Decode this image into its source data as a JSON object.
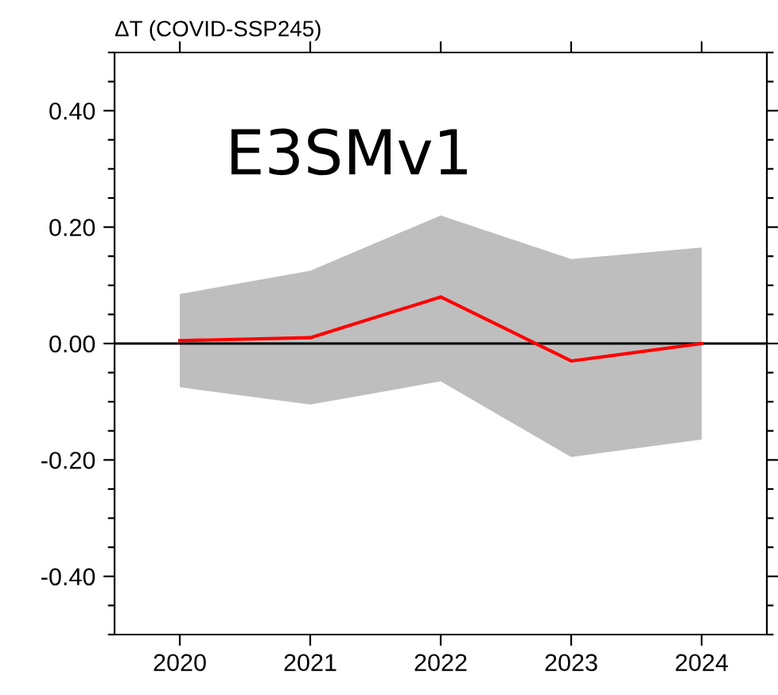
{
  "chart_data": {
    "type": "line",
    "ylabel": "ΔT (COVID-SSP245)",
    "annotations": [
      "E3SMv1"
    ],
    "x": [
      2020,
      2021,
      2022,
      2023,
      2024
    ],
    "series": [
      {
        "type": "area",
        "color": "#bebebe",
        "values": [
          null,
          null,
          null,
          null,
          null
        ],
        "lower": [
          -0.075,
          -0.105,
          -0.065,
          -0.195,
          -0.165
        ],
        "upper": [
          0.085,
          0.125,
          0.22,
          0.145,
          0.165
        ]
      },
      {
        "color": "#ff0000",
        "values": [
          0.005,
          0.01,
          0.08,
          -0.03,
          0.0
        ]
      }
    ],
    "xlim": [
      2019.5,
      2024.5
    ],
    "xticks": [
      2020,
      2021,
      2022,
      2023,
      2024
    ],
    "ylim": [
      -0.5,
      0.5
    ],
    "yticks": [
      {
        "value": -0.5,
        "label": null
      },
      {
        "value": -0.45,
        "label": null
      },
      {
        "value": -0.4,
        "label": "-0.40"
      },
      {
        "value": -0.35,
        "label": null
      },
      {
        "value": -0.3,
        "label": null
      },
      {
        "value": -0.25,
        "label": null
      },
      {
        "value": -0.2,
        "label": "-0.20"
      },
      {
        "value": -0.15,
        "label": null
      },
      {
        "value": -0.1,
        "label": null
      },
      {
        "value": -0.05,
        "label": null
      },
      {
        "value": 0,
        "label": "0.00"
      },
      {
        "value": 0.05,
        "label": null
      },
      {
        "value": 0.1,
        "label": null
      },
      {
        "value": 0.15,
        "label": null
      },
      {
        "value": 0.2,
        "label": "0.20"
      },
      {
        "value": 0.25,
        "label": null
      },
      {
        "value": 0.3,
        "label": null
      },
      {
        "value": 0.35,
        "label": null
      },
      {
        "value": 0.4,
        "label": "0.40"
      },
      {
        "value": 0.45,
        "label": null
      },
      {
        "value": 0.5,
        "label": null
      }
    ],
    "ref_lines": [
      {
        "axis": "y",
        "value": 0,
        "color": "#000000"
      }
    ],
    "grid": false,
    "legend": false,
    "line_style": "solid",
    "marker": "none"
  }
}
